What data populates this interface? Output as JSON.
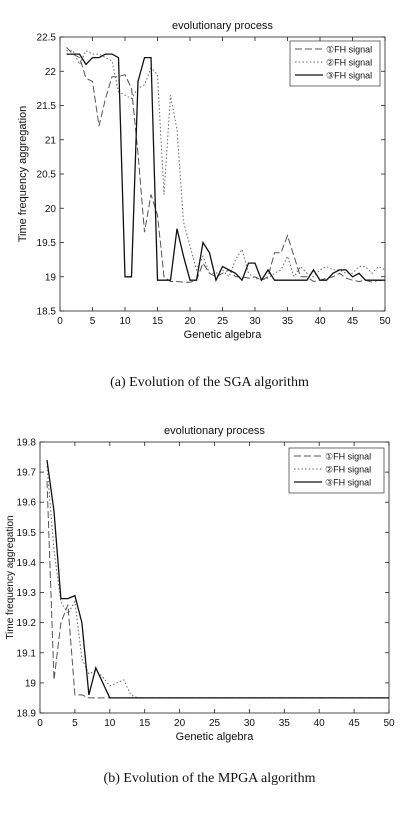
{
  "chart_data": [
    {
      "type": "line",
      "title": "evolutionary process",
      "xlabel": "Genetic algebra",
      "ylabel": "Time frequency aggregation",
      "xlim": [
        0,
        50
      ],
      "ylim": [
        18.5,
        22.5
      ],
      "xticks": [
        0,
        5,
        10,
        15,
        20,
        25,
        30,
        35,
        40,
        45,
        50
      ],
      "yticks": [
        18.5,
        19,
        19.5,
        20,
        20.5,
        21,
        21.5,
        22,
        22.5
      ],
      "legend_position": "top-right",
      "grid": false,
      "caption": "(a) Evolution of the SGA algorithm",
      "x": [
        1,
        2,
        3,
        4,
        5,
        6,
        7,
        8,
        9,
        10,
        11,
        12,
        13,
        14,
        15,
        16,
        17,
        18,
        19,
        20,
        21,
        22,
        23,
        24,
        25,
        26,
        27,
        28,
        29,
        30,
        31,
        32,
        33,
        34,
        35,
        36,
        37,
        38,
        39,
        40,
        41,
        42,
        43,
        44,
        45,
        46,
        47,
        48,
        49,
        50
      ],
      "series": [
        {
          "name": "①FH signal",
          "dash": "dashed",
          "values": [
            22.35,
            22.25,
            22.2,
            21.9,
            21.85,
            21.2,
            21.6,
            21.92,
            21.92,
            21.95,
            21.75,
            20.8,
            19.65,
            20.2,
            19.9,
            19.0,
            18.93,
            18.93,
            18.92,
            18.92,
            18.95,
            19.2,
            19.05,
            19.0,
            19.05,
            19.1,
            19.0,
            19.0,
            18.98,
            19.0,
            18.95,
            19.0,
            19.35,
            19.35,
            19.6,
            19.3,
            19.0,
            19.0,
            18.93,
            18.95,
            18.98,
            19.0,
            19.05,
            18.98,
            18.95,
            18.93,
            18.95,
            18.92,
            18.95,
            18.93
          ]
        },
        {
          "name": "②FH signal",
          "dash": "dotted",
          "values": [
            22.3,
            22.3,
            22.1,
            22.3,
            22.25,
            22.25,
            22.2,
            22.15,
            21.7,
            21.65,
            21.6,
            21.75,
            21.8,
            22.05,
            21.95,
            20.2,
            21.65,
            21.15,
            19.8,
            19.45,
            19.1,
            19.3,
            19.05,
            19.05,
            19.1,
            19.0,
            19.25,
            19.4,
            19.05,
            18.98,
            18.95,
            18.98,
            19.05,
            19.1,
            19.3,
            19.0,
            19.15,
            19.05,
            19.0,
            19.1,
            19.15,
            19.1,
            19.1,
            19.05,
            19.05,
            19.15,
            19.15,
            19.05,
            19.15,
            19.1
          ]
        },
        {
          "name": "③FH signal",
          "dash": "solid",
          "values": [
            22.25,
            22.25,
            22.25,
            22.1,
            22.2,
            22.2,
            22.25,
            22.25,
            22.2,
            19.0,
            19.0,
            21.85,
            22.2,
            22.2,
            18.95,
            18.95,
            18.95,
            19.7,
            19.3,
            18.95,
            18.95,
            19.5,
            19.35,
            18.95,
            19.15,
            19.1,
            19.05,
            18.95,
            19.2,
            19.2,
            18.95,
            19.1,
            18.95,
            18.95,
            18.95,
            18.95,
            18.95,
            18.95,
            19.1,
            18.95,
            18.95,
            19.05,
            19.1,
            19.1,
            19.0,
            19.05,
            18.95,
            18.95,
            18.95,
            18.95
          ]
        }
      ]
    },
    {
      "type": "line",
      "title": "evolutionary process",
      "xlabel": "Genetic algebra",
      "ylabel": "Time frequency aggregation",
      "xlim": [
        0,
        50
      ],
      "ylim": [
        18.9,
        19.8
      ],
      "xticks": [
        0,
        5,
        10,
        15,
        20,
        25,
        30,
        35,
        40,
        45,
        50
      ],
      "yticks": [
        18.9,
        19,
        19.1,
        19.2,
        19.3,
        19.4,
        19.5,
        19.6,
        19.7,
        19.8
      ],
      "legend_position": "top-right",
      "grid": false,
      "caption": "(b) Evolution of the MPGA algorithm",
      "x": [
        1,
        2,
        3,
        4,
        5,
        6,
        7,
        8,
        9,
        10,
        11,
        12,
        13,
        14,
        15,
        16,
        17,
        18,
        19,
        20,
        21,
        22,
        23,
        24,
        25,
        26,
        27,
        28,
        29,
        30,
        31,
        32,
        33,
        34,
        35,
        36,
        37,
        38,
        39,
        40,
        41,
        42,
        43,
        44,
        45,
        46,
        47,
        48,
        49,
        50
      ],
      "series": [
        {
          "name": "①FH signal",
          "dash": "dashed",
          "values": [
            19.67,
            19.01,
            19.2,
            19.26,
            18.96,
            18.96,
            18.95,
            18.95,
            18.95,
            18.95,
            18.95,
            18.95,
            18.95,
            18.95,
            18.95,
            18.95,
            18.95,
            18.95,
            18.95,
            18.95,
            18.95,
            18.95,
            18.95,
            18.95,
            18.95,
            18.95,
            18.95,
            18.95,
            18.95,
            18.95,
            18.95,
            18.95,
            18.95,
            18.95,
            18.95,
            18.95,
            18.95,
            18.95,
            18.95,
            18.95,
            18.95,
            18.95,
            18.95,
            18.95,
            18.95,
            18.95,
            18.95,
            18.95,
            18.95,
            18.95
          ]
        },
        {
          "name": "②FH signal",
          "dash": "dotted",
          "values": [
            19.72,
            19.44,
            19.27,
            19.23,
            19.27,
            19.08,
            19.03,
            19.04,
            19.02,
            18.99,
            19.0,
            19.01,
            18.96,
            18.95,
            18.95,
            18.95,
            18.95,
            18.95,
            18.95,
            18.95,
            18.95,
            18.95,
            18.95,
            18.95,
            18.95,
            18.95,
            18.95,
            18.95,
            18.95,
            18.95,
            18.95,
            18.95,
            18.95,
            18.95,
            18.95,
            18.95,
            18.95,
            18.95,
            18.95,
            18.95,
            18.95,
            18.95,
            18.95,
            18.95,
            18.95,
            18.95,
            18.95,
            18.95,
            18.95,
            18.95
          ]
        },
        {
          "name": "③FH signal",
          "dash": "solid",
          "values": [
            19.74,
            19.57,
            19.28,
            19.28,
            19.29,
            19.2,
            18.96,
            19.05,
            19.0,
            18.95,
            18.95,
            18.95,
            18.95,
            18.95,
            18.95,
            18.95,
            18.95,
            18.95,
            18.95,
            18.95,
            18.95,
            18.95,
            18.95,
            18.95,
            18.95,
            18.95,
            18.95,
            18.95,
            18.95,
            18.95,
            18.95,
            18.95,
            18.95,
            18.95,
            18.95,
            18.95,
            18.95,
            18.95,
            18.95,
            18.95,
            18.95,
            18.95,
            18.95,
            18.95,
            18.95,
            18.95,
            18.95,
            18.95,
            18.95,
            18.95
          ]
        }
      ]
    }
  ]
}
